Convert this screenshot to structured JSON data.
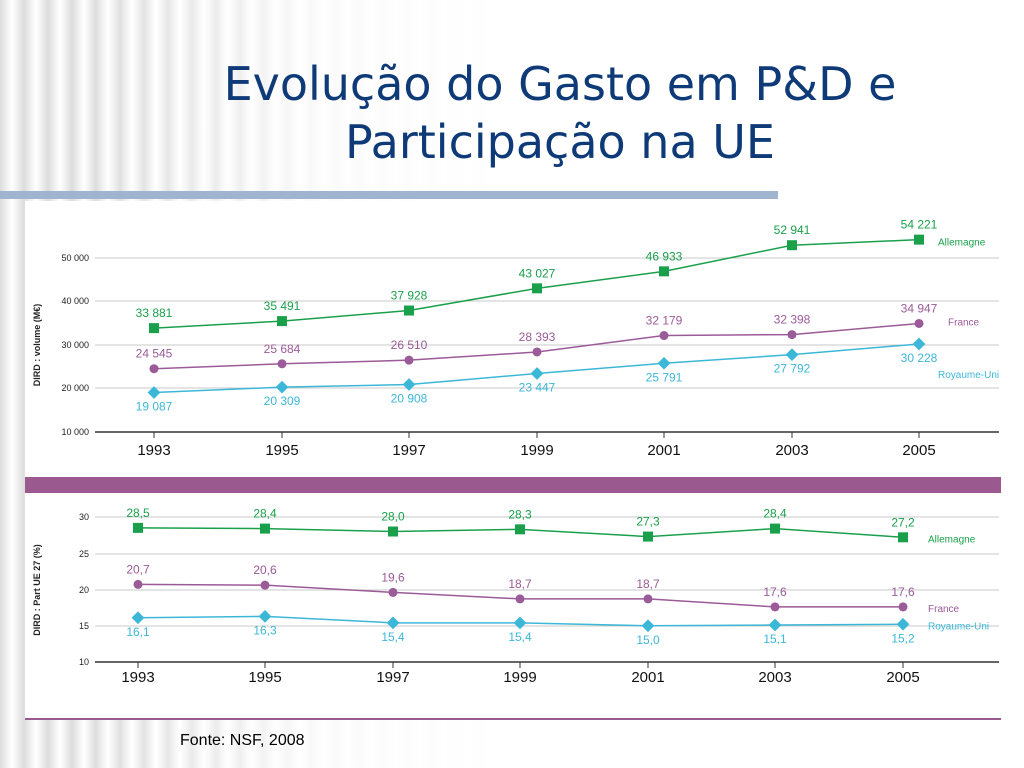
{
  "slide": {
    "title_line1": "Evolução do Gasto em P&D e",
    "title_line2": "Participação na UE",
    "source": "Fonte: NSF, 2008"
  },
  "colors": {
    "germany": "#1aa04b",
    "france": "#9b5a98",
    "uk": "#3cb7d8",
    "title": "#0f3a78",
    "band": "#9a5a90"
  },
  "chart_data": [
    {
      "type": "line",
      "ylabel": "DIRD : volume (M€)",
      "ylim": [
        10000,
        55000
      ],
      "yticks": [
        "10 000",
        "20 000",
        "30 000",
        "40 000",
        "50 000"
      ],
      "x": [
        "1993",
        "1995",
        "1997",
        "1999",
        "2001",
        "2003",
        "2005"
      ],
      "grid": true,
      "series": [
        {
          "name": "Allemagne",
          "values": [
            33881,
            35491,
            37928,
            43027,
            46933,
            52941,
            54221
          ],
          "labels": [
            "33 881",
            "35 491",
            "37 928",
            "43 027",
            "46 933",
            "52 941",
            "54 221"
          ]
        },
        {
          "name": "France",
          "values": [
            24545,
            25684,
            26510,
            28393,
            32179,
            32398,
            34947
          ],
          "labels": [
            "24 545",
            "25 684",
            "26 510",
            "28 393",
            "32 179",
            "32 398",
            "34 947"
          ]
        },
        {
          "name": "Royaume-Uni",
          "values": [
            19087,
            20309,
            20908,
            23447,
            25791,
            27792,
            30228
          ],
          "labels": [
            "19 087",
            "20 309",
            "20 908",
            "23 447",
            "25 791",
            "27 792",
            "30 228"
          ]
        }
      ]
    },
    {
      "type": "line",
      "ylabel": "DIRD : Part UE 27 (%)",
      "ylim": [
        10,
        30
      ],
      "yticks": [
        "10",
        "15",
        "20",
        "25",
        "30"
      ],
      "x": [
        "1993",
        "1995",
        "1997",
        "1999",
        "2001",
        "2003",
        "2005"
      ],
      "grid": true,
      "series": [
        {
          "name": "Allemagne",
          "values": [
            28.5,
            28.4,
            28.0,
            28.3,
            27.3,
            28.4,
            27.2
          ],
          "labels": [
            "28,5",
            "28,4",
            "28,0",
            "28,3",
            "27,3",
            "28,4",
            "27,2"
          ]
        },
        {
          "name": "France",
          "values": [
            20.7,
            20.6,
            19.6,
            18.7,
            18.7,
            17.6,
            17.6
          ],
          "labels": [
            "20,7",
            "20,6",
            "19,6",
            "18,7",
            "18,7",
            "17,6",
            "17,6"
          ]
        },
        {
          "name": "Royaume-Uni",
          "values": [
            16.1,
            16.3,
            15.4,
            15.4,
            15.0,
            15.1,
            15.2
          ],
          "labels": [
            "16,1",
            "16,3",
            "15,4",
            "15,4",
            "15,0",
            "15,1",
            "15,2"
          ]
        }
      ]
    }
  ]
}
